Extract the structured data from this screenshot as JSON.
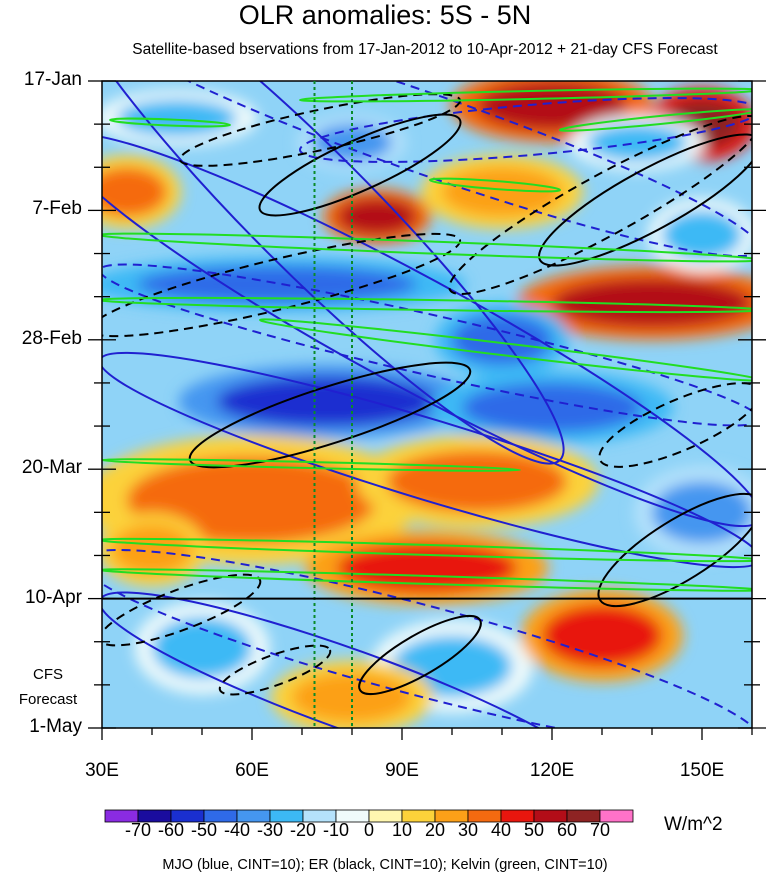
{
  "chart_data": {
    "type": "heatmap",
    "title": "OLR anomalies: 5S - 5N",
    "subtitle": "Satellite-based bservations from 17-Jan-2012 to 10-Apr-2012 + 21-day CFS Forecast",
    "x_axis": {
      "range": [
        30,
        160
      ],
      "ticks": [
        30,
        60,
        90,
        120,
        150
      ],
      "tick_labels": [
        "30E",
        "60E",
        "90E",
        "120E",
        "150E"
      ],
      "unit": "degrees longitude"
    },
    "y_axis": {
      "range_days": [
        0,
        105
      ],
      "ticks_days": [
        0,
        21,
        42,
        63,
        84,
        105
      ],
      "tick_labels": [
        "17-Jan",
        "7-Feb",
        "28-Feb",
        "20-Mar",
        "10-Apr",
        "1-May"
      ],
      "direction": "time increases downward"
    },
    "forecast_start_day": 84,
    "forecast_label_lines": [
      "CFS",
      "Forecast"
    ],
    "reference_longitudes": [
      72.5,
      80
    ],
    "colorbar": {
      "levels": [
        -70,
        -60,
        -50,
        -40,
        -30,
        -20,
        -10,
        0,
        10,
        20,
        30,
        40,
        50,
        60,
        70
      ],
      "labels": [
        "-70",
        "-60",
        "-50",
        "-40",
        "-30",
        "-20",
        "-10",
        "0",
        "10",
        "20",
        "30",
        "40",
        "50",
        "60",
        "70"
      ],
      "colors": [
        "#8a2be2",
        "#1a0c9e",
        "#1a2fd0",
        "#2f6ae8",
        "#4596f0",
        "#3cb9f5",
        "#b5e2fb",
        "#f0fbfb",
        "#fff7b0",
        "#fcd23a",
        "#fca018",
        "#f56a10",
        "#e8160e",
        "#b30d18",
        "#8e2323",
        "#ff72c8"
      ],
      "units": "W/m^2"
    },
    "field": {
      "description": "estimated OLR anomaly blobs (lon, day, value)",
      "blobs": [
        {
          "lon": 45,
          "day": 6,
          "value": -30,
          "rx": 12,
          "ry": 3
        },
        {
          "lon": 80,
          "day": 10,
          "value": -40,
          "rx": 8,
          "ry": 3
        },
        {
          "lon": 120,
          "day": 4,
          "value": 50,
          "rx": 15,
          "ry": 4
        },
        {
          "lon": 150,
          "day": 7,
          "value": 60,
          "rx": 8,
          "ry": 4
        },
        {
          "lon": 137,
          "day": 10,
          "value": -30,
          "rx": 10,
          "ry": 3
        },
        {
          "lon": 35,
          "day": 18,
          "value": 30,
          "rx": 8,
          "ry": 4
        },
        {
          "lon": 85,
          "day": 22,
          "value": 50,
          "rx": 8,
          "ry": 3
        },
        {
          "lon": 110,
          "day": 18,
          "value": 20,
          "rx": 12,
          "ry": 4
        },
        {
          "lon": 65,
          "day": 33,
          "value": -50,
          "rx": 28,
          "ry": 3
        },
        {
          "lon": 140,
          "day": 36,
          "value": 50,
          "rx": 20,
          "ry": 4
        },
        {
          "lon": 150,
          "day": 25,
          "value": -30,
          "rx": 8,
          "ry": 4
        },
        {
          "lon": 110,
          "day": 42,
          "value": -50,
          "rx": 10,
          "ry": 4
        },
        {
          "lon": 75,
          "day": 52,
          "value": -60,
          "rx": 22,
          "ry": 4
        },
        {
          "lon": 120,
          "day": 53,
          "value": -50,
          "rx": 18,
          "ry": 4
        },
        {
          "lon": 60,
          "day": 68,
          "value": 30,
          "rx": 25,
          "ry": 7
        },
        {
          "lon": 105,
          "day": 65,
          "value": 30,
          "rx": 18,
          "ry": 5
        },
        {
          "lon": 150,
          "day": 70,
          "value": -40,
          "rx": 10,
          "ry": 5
        },
        {
          "lon": 95,
          "day": 79,
          "value": 40,
          "rx": 18,
          "ry": 4
        },
        {
          "lon": 40,
          "day": 76,
          "value": 20,
          "rx": 8,
          "ry": 4
        },
        {
          "lon": 50,
          "day": 92,
          "value": -30,
          "rx": 10,
          "ry": 5
        },
        {
          "lon": 100,
          "day": 95,
          "value": -30,
          "rx": 12,
          "ry": 5
        },
        {
          "lon": 130,
          "day": 90,
          "value": 40,
          "rx": 12,
          "ry": 5
        },
        {
          "lon": 80,
          "day": 100,
          "value": 20,
          "rx": 12,
          "ry": 4
        }
      ]
    },
    "contours": {
      "mjo": {
        "color": "#2020d0",
        "cint": 10
      },
      "er": {
        "color": "#000000",
        "cint": 10
      },
      "kelvin": {
        "color": "#22dd22",
        "cint": 10
      }
    },
    "footnote": "MJO (blue, CINT=10); ER (black, CINT=10); Kelvin (green, CINT=10)"
  }
}
